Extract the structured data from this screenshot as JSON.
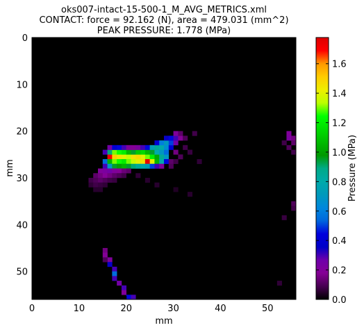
{
  "chart_data": {
    "type": "heatmap",
    "title_lines": [
      "oks007-intact-15-500-1_M_AVG_METRICS.xml",
      "CONTACT: force = 92.162 (N), area = 479.031 (mm^2)",
      "PEAK PRESSURE: 1.778 (MPa)"
    ],
    "xlabel": "mm",
    "ylabel": "mm",
    "colorbar_label": "Pressure (MPa)",
    "xlim": [
      0,
      56
    ],
    "ylim": [
      0,
      56
    ],
    "y_inverted": true,
    "x_ticks": [
      "0",
      "10",
      "20",
      "30",
      "40",
      "50"
    ],
    "y_ticks": [
      "0",
      "10",
      "20",
      "30",
      "40",
      "50"
    ],
    "colorbar_ticks": [
      "0.0",
      "0.2",
      "0.4",
      "0.6",
      "0.8",
      "1.0",
      "1.2",
      "1.4",
      "1.6"
    ],
    "colorbar_range": [
      0,
      1.778
    ],
    "colormap": "nipy_spectral",
    "grid": false,
    "cells": [
      [
        16,
        25,
        1.72
      ],
      [
        17,
        25,
        1.5
      ],
      [
        18,
        25,
        1.45
      ],
      [
        19,
        25,
        1.4
      ],
      [
        20,
        25,
        1.35
      ],
      [
        21,
        25,
        1.45
      ],
      [
        22,
        25,
        1.48
      ],
      [
        23,
        25,
        1.4
      ],
      [
        24,
        25,
        1.3
      ],
      [
        25,
        25,
        1.2
      ],
      [
        26,
        25,
        1.02
      ],
      [
        27,
        25,
        0.85
      ],
      [
        28,
        25,
        0.7
      ],
      [
        15,
        24,
        0.3
      ],
      [
        16,
        24,
        0.9
      ],
      [
        17,
        24,
        1.3
      ],
      [
        18,
        24,
        1.25
      ],
      [
        19,
        24,
        1.2
      ],
      [
        20,
        24,
        1.05
      ],
      [
        21,
        24,
        0.95
      ],
      [
        22,
        24,
        1.1
      ],
      [
        23,
        24,
        1.15
      ],
      [
        24,
        24,
        1.05
      ],
      [
        25,
        24,
        0.95
      ],
      [
        26,
        24,
        0.8
      ],
      [
        27,
        24,
        0.7
      ],
      [
        28,
        24,
        0.55
      ],
      [
        15,
        26,
        0.55
      ],
      [
        16,
        26,
        1.05
      ],
      [
        17,
        26,
        1.3
      ],
      [
        18,
        26,
        1.25
      ],
      [
        19,
        26,
        1.2
      ],
      [
        20,
        26,
        1.3
      ],
      [
        21,
        26,
        1.35
      ],
      [
        22,
        26,
        1.4
      ],
      [
        23,
        26,
        1.45
      ],
      [
        24,
        26,
        1.74
      ],
      [
        25,
        26,
        1.4
      ],
      [
        26,
        26,
        1.05
      ],
      [
        27,
        26,
        0.8
      ],
      [
        28,
        26,
        0.45
      ],
      [
        15,
        27,
        0.3
      ],
      [
        16,
        27,
        0.7
      ],
      [
        17,
        27,
        0.95
      ],
      [
        18,
        27,
        1.0
      ],
      [
        19,
        27,
        1.05
      ],
      [
        20,
        27,
        0.95
      ],
      [
        21,
        27,
        0.9
      ],
      [
        22,
        27,
        0.85
      ],
      [
        23,
        27,
        0.8
      ],
      [
        24,
        27,
        0.75
      ],
      [
        25,
        27,
        0.5
      ],
      [
        26,
        27,
        0.3
      ],
      [
        27,
        27,
        0.2
      ],
      [
        16,
        23,
        0.25
      ],
      [
        17,
        23,
        0.4
      ],
      [
        18,
        23,
        0.45
      ],
      [
        19,
        23,
        0.3
      ],
      [
        20,
        23,
        0.2
      ],
      [
        21,
        23,
        0.18
      ],
      [
        22,
        23,
        0.22
      ],
      [
        23,
        23,
        0.3
      ],
      [
        24,
        23,
        0.45
      ],
      [
        25,
        23,
        0.75
      ],
      [
        26,
        23,
        0.85
      ],
      [
        27,
        23,
        0.8
      ],
      [
        28,
        23,
        0.65
      ],
      [
        29,
        23,
        0.4
      ],
      [
        26,
        22,
        0.4
      ],
      [
        27,
        22,
        0.6
      ],
      [
        28,
        22,
        0.7
      ],
      [
        29,
        22,
        0.5
      ],
      [
        30,
        22,
        0.25
      ],
      [
        28,
        21,
        0.35
      ],
      [
        29,
        21,
        0.45
      ],
      [
        30,
        21,
        0.3
      ],
      [
        31,
        21,
        0.18
      ],
      [
        30,
        20,
        0.2
      ],
      [
        31,
        20,
        0.12
      ],
      [
        14,
        28,
        0.2
      ],
      [
        15,
        28,
        0.22
      ],
      [
        16,
        28,
        0.25
      ],
      [
        17,
        28,
        0.2
      ],
      [
        18,
        28,
        0.18
      ],
      [
        19,
        28,
        0.14
      ],
      [
        20,
        28,
        0.12
      ],
      [
        13,
        29,
        0.12
      ],
      [
        14,
        29,
        0.15
      ],
      [
        15,
        29,
        0.18
      ],
      [
        16,
        29,
        0.15
      ],
      [
        17,
        29,
        0.12
      ],
      [
        18,
        29,
        0.1
      ],
      [
        19,
        29,
        0.08
      ],
      [
        12,
        30,
        0.08
      ],
      [
        13,
        30,
        0.1
      ],
      [
        14,
        30,
        0.12
      ],
      [
        15,
        30,
        0.1
      ],
      [
        16,
        30,
        0.08
      ],
      [
        17,
        30,
        0.07
      ],
      [
        12,
        31,
        0.06
      ],
      [
        13,
        31,
        0.08
      ],
      [
        14,
        31,
        0.07
      ],
      [
        15,
        31,
        0.06
      ],
      [
        13,
        32,
        0.05
      ],
      [
        14,
        32,
        0.05
      ],
      [
        15,
        45,
        0.15
      ],
      [
        15,
        46,
        0.18
      ],
      [
        16,
        47,
        0.2
      ],
      [
        16,
        48,
        0.35
      ],
      [
        17,
        49,
        0.3
      ],
      [
        17,
        50,
        0.55
      ],
      [
        17,
        51,
        0.3
      ],
      [
        18,
        52,
        0.25
      ],
      [
        19,
        53,
        0.3
      ],
      [
        19,
        54,
        0.2
      ],
      [
        20,
        55,
        0.45
      ],
      [
        21,
        55,
        0.3
      ],
      [
        15,
        47,
        0.1
      ],
      [
        54,
        20,
        0.2
      ],
      [
        54,
        21,
        0.22
      ],
      [
        55,
        21,
        0.15
      ],
      [
        55,
        22,
        0.12
      ],
      [
        53,
        22,
        0.08
      ],
      [
        54,
        23,
        0.1
      ],
      [
        55,
        24,
        0.08
      ],
      [
        55,
        35,
        0.1
      ],
      [
        55,
        36,
        0.08
      ],
      [
        53,
        38,
        0.07
      ],
      [
        52,
        52,
        0.06
      ],
      [
        30,
        24,
        0.15
      ],
      [
        31,
        25,
        0.1
      ],
      [
        32,
        23,
        0.08
      ],
      [
        29,
        26,
        0.12
      ],
      [
        30,
        26,
        0.08
      ],
      [
        33,
        24,
        0.07
      ],
      [
        32,
        21,
        0.1
      ],
      [
        34,
        20,
        0.08
      ],
      [
        35,
        26,
        0.06
      ],
      [
        29,
        27,
        0.1
      ],
      [
        22,
        29,
        0.06
      ],
      [
        24,
        30,
        0.05
      ],
      [
        26,
        31,
        0.05
      ],
      [
        30,
        32,
        0.04
      ],
      [
        33,
        33,
        0.05
      ]
    ]
  }
}
